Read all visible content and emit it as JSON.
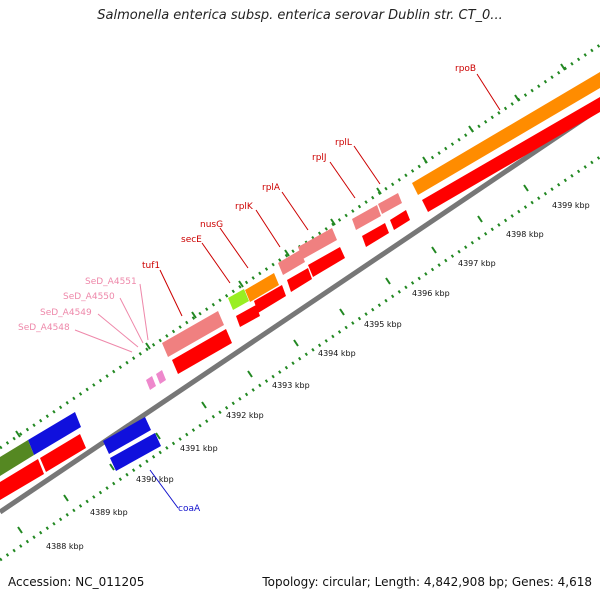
{
  "title": "Salmonella enterica subsp. enterica serovar Dublin str. CT_0...",
  "footer": {
    "accession": "Accession: NC_011205",
    "summary": "Topology: circular; Length: 4,842,908 bp; Genes: 4,618"
  },
  "axis_ticks": [
    "4388 kbp",
    "4389 kbp",
    "4390 kbp",
    "4391 kbp",
    "4392 kbp",
    "4393 kbp",
    "4394 kbp",
    "4395 kbp",
    "4396 kbp",
    "4397 kbp",
    "4398 kbp",
    "4399 kbp"
  ],
  "gene_labels": [
    {
      "name": "rpoB",
      "color": "#cc0000"
    },
    {
      "name": "rplL",
      "color": "#cc0000"
    },
    {
      "name": "rplJ",
      "color": "#cc0000"
    },
    {
      "name": "rplA",
      "color": "#cc0000"
    },
    {
      "name": "rplK",
      "color": "#cc0000"
    },
    {
      "name": "nusG",
      "color": "#cc0000"
    },
    {
      "name": "secE",
      "color": "#cc0000"
    },
    {
      "name": "tuf1",
      "color": "#cc0000"
    },
    {
      "name": "SeD_A4551",
      "color": "#ee88aa"
    },
    {
      "name": "SeD_A4550",
      "color": "#ee88aa"
    },
    {
      "name": "SeD_A4549",
      "color": "#ee88aa"
    },
    {
      "name": "SeD_A4548",
      "color": "#ee88aa"
    },
    {
      "name": "coaA",
      "color": "#1111cc"
    }
  ],
  "colors": {
    "cds": "#ff0000",
    "trna_light": "#f08080",
    "rrna": "#ff8c00",
    "lime": "#99ee22",
    "blue": "#1010dd",
    "olive": "#558822",
    "pink": "#ee88cc",
    "backbone": "#777777",
    "tick": "#228822"
  }
}
